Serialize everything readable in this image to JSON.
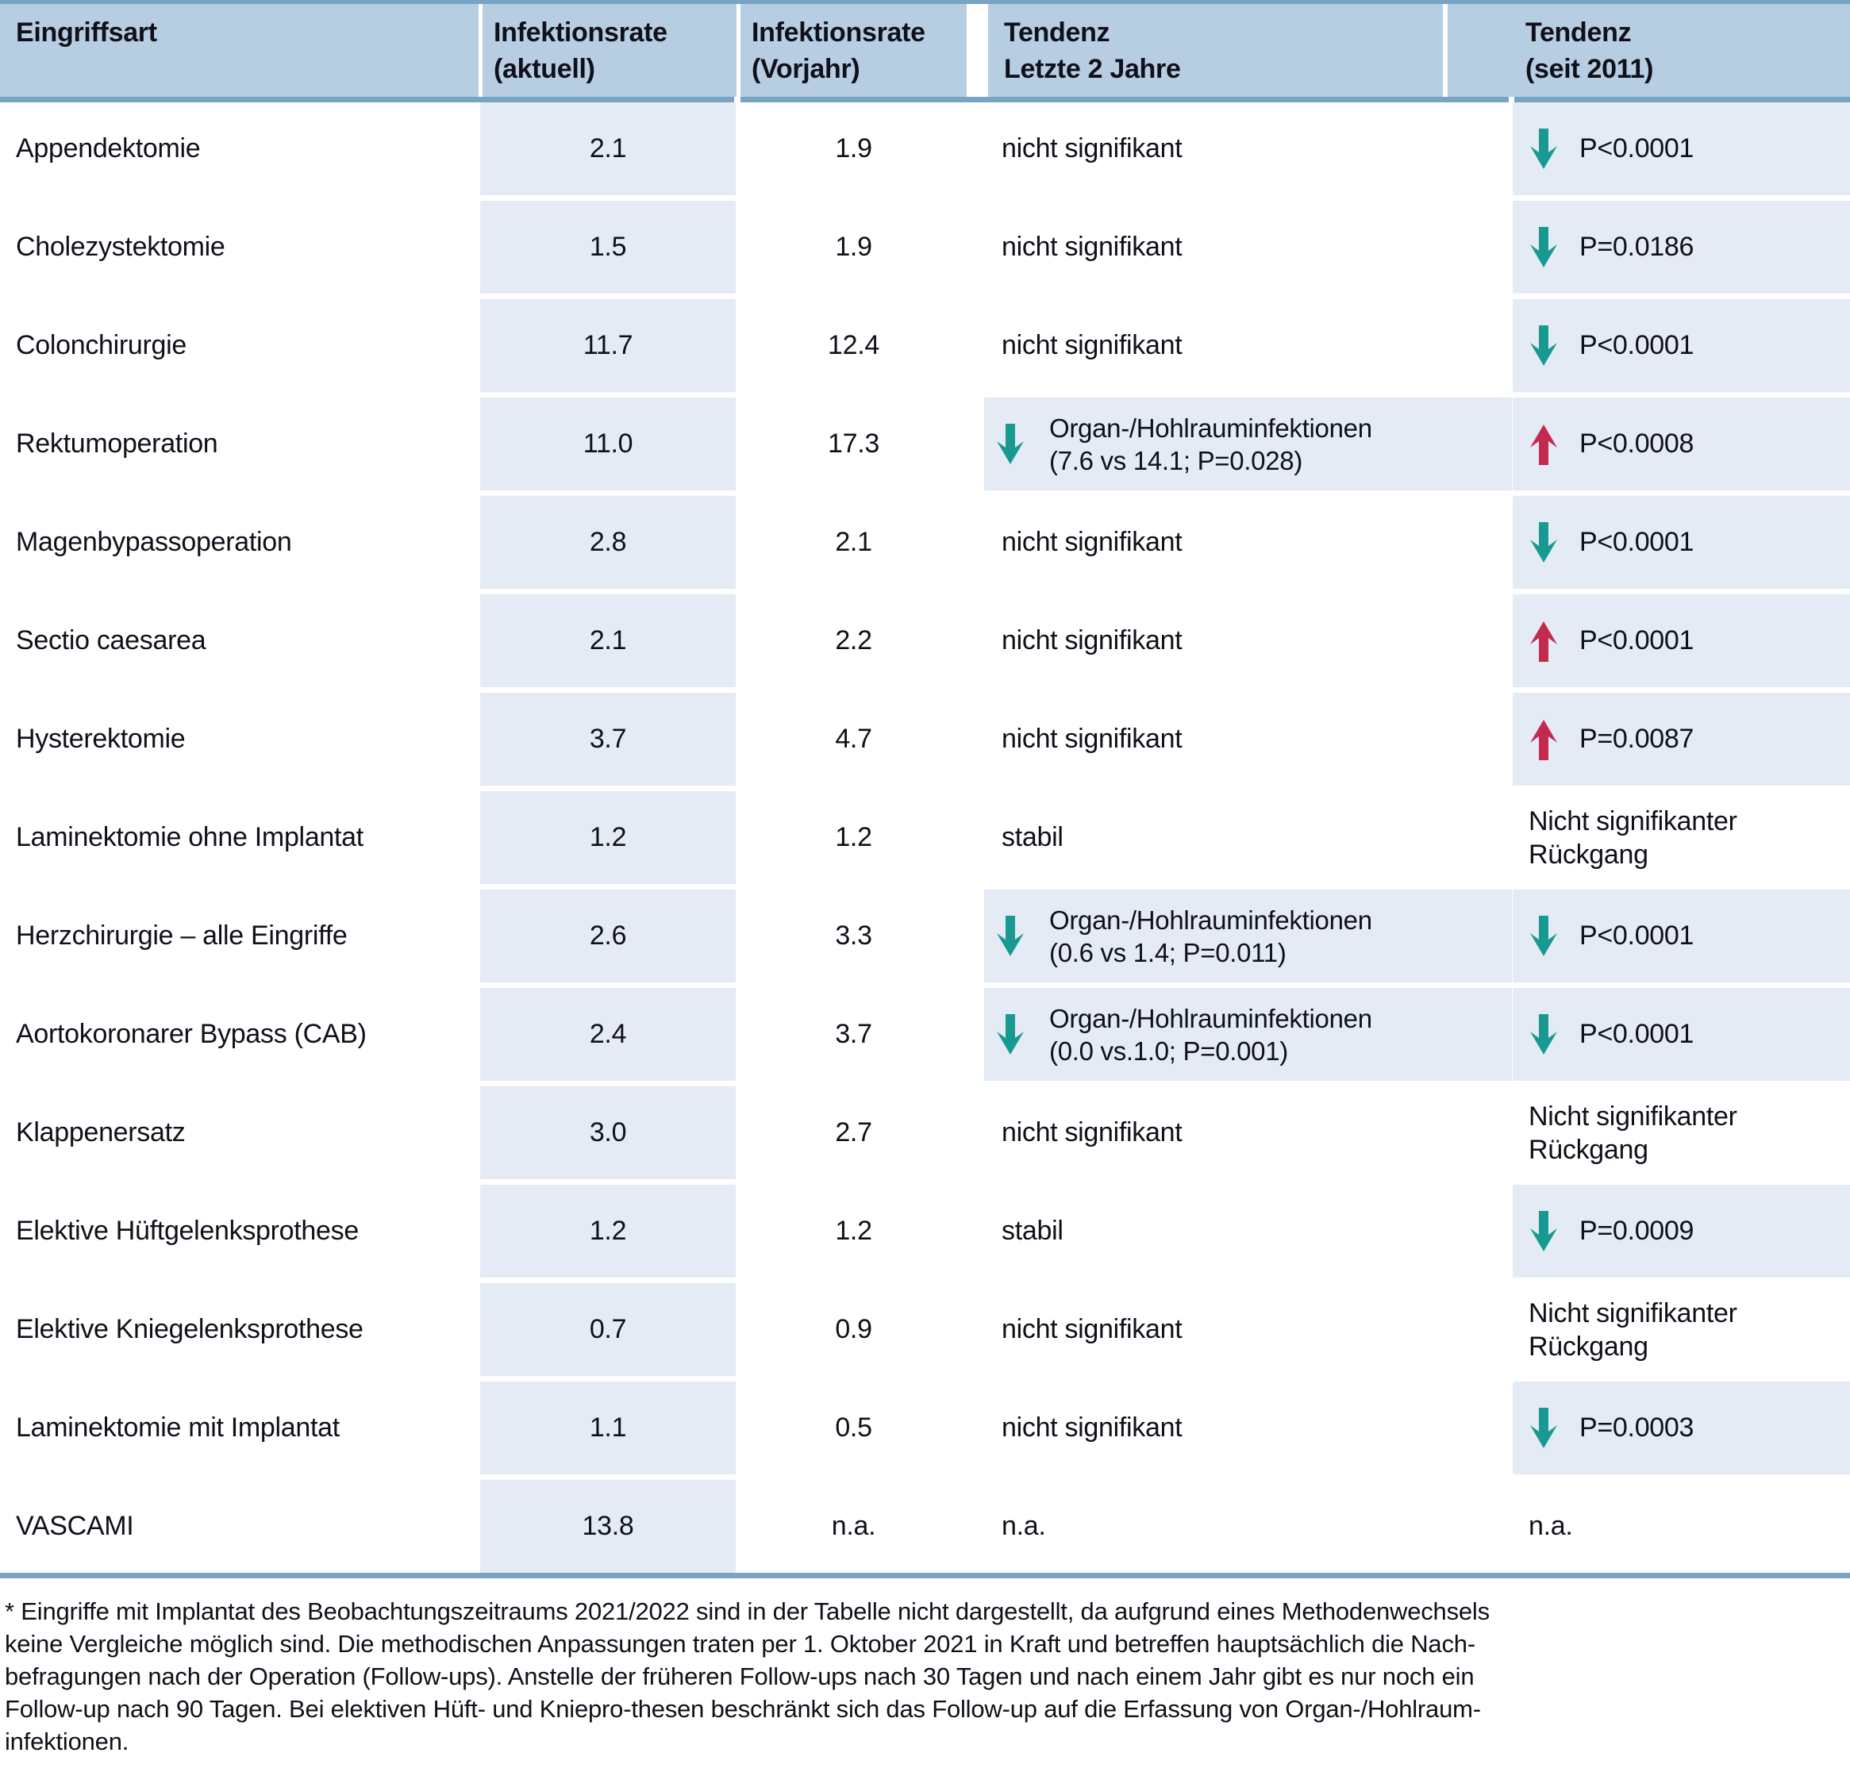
{
  "colors": {
    "header_bg": "#b7cde1",
    "divider": "#76a4c2",
    "row_highlight": "#e5ebf4",
    "arrow_down": "#189a92",
    "arrow_up": "#c42a4e",
    "text": "#10101a"
  },
  "table": {
    "columns": [
      {
        "line1": "Eingriffsart",
        "line2": ""
      },
      {
        "line1": "Infektionsrate",
        "line2": "(aktuell)"
      },
      {
        "line1": "Infektionsrate",
        "line2": "(Vorjahr)"
      },
      {
        "line1": "Tendenz",
        "line2": "Letzte 2 Jahre"
      },
      {
        "line1": "Tendenz",
        "line2": "(seit 2011)"
      }
    ],
    "rows": [
      {
        "procedure": "Appendektomie",
        "rate_current": "2.1",
        "rate_previous": "1.9",
        "trend_2y": {
          "text": "nicht signifikant"
        },
        "trend_2011": {
          "arrow": "down",
          "text": "P<0.0001",
          "highlight": true
        }
      },
      {
        "procedure": "Cholezystektomie",
        "rate_current": "1.5",
        "rate_previous": "1.9",
        "trend_2y": {
          "text": "nicht signifikant"
        },
        "trend_2011": {
          "arrow": "down",
          "text": "P=0.0186",
          "highlight": true
        }
      },
      {
        "procedure": "Colonchirurgie",
        "rate_current": "11.7",
        "rate_previous": "12.4",
        "trend_2y": {
          "text": "nicht signifikant"
        },
        "trend_2011": {
          "arrow": "down",
          "text": "P<0.0001",
          "highlight": true
        }
      },
      {
        "procedure": "Rektumoperation",
        "rate_current": "11.0",
        "rate_previous": "17.3",
        "trend_2y": {
          "box": true,
          "arrow": "down",
          "lines": [
            "Organ-/Hohlrauminfektionen",
            "(7.6 vs 14.1; P=0.028)"
          ]
        },
        "trend_2011": {
          "arrow": "up",
          "text": "P<0.0008",
          "highlight": true
        }
      },
      {
        "procedure": "Magenbypassoperation",
        "rate_current": "2.8",
        "rate_previous": "2.1",
        "trend_2y": {
          "text": "nicht signifikant"
        },
        "trend_2011": {
          "arrow": "down",
          "text": "P<0.0001",
          "highlight": true
        }
      },
      {
        "procedure": "Sectio caesarea",
        "rate_current": "2.1",
        "rate_previous": "2.2",
        "trend_2y": {
          "text": "nicht signifikant"
        },
        "trend_2011": {
          "arrow": "up",
          "text": "P<0.0001",
          "highlight": true
        }
      },
      {
        "procedure": "Hysterektomie",
        "rate_current": "3.7",
        "rate_previous": "4.7",
        "trend_2y": {
          "text": "nicht signifikant"
        },
        "trend_2011": {
          "arrow": "up",
          "text": "P=0.0087",
          "highlight": true
        }
      },
      {
        "procedure": "Laminektomie ohne Implantat",
        "rate_current": "1.2",
        "rate_previous": "1.2",
        "trend_2y": {
          "text": "stabil"
        },
        "trend_2011": {
          "lines": [
            "Nicht signifikanter",
            "Rückgang"
          ],
          "highlight": false
        }
      },
      {
        "procedure": "Herzchirurgie – alle Eingriffe",
        "rate_current": "2.6",
        "rate_previous": "3.3",
        "trend_2y": {
          "box": true,
          "arrow": "down",
          "lines": [
            "Organ-/Hohlrauminfektionen",
            "(0.6 vs 1.4; P=0.011)"
          ]
        },
        "trend_2011": {
          "arrow": "down",
          "text": "P<0.0001",
          "highlight": true
        }
      },
      {
        "procedure": "Aortokoronarer Bypass (CAB)",
        "rate_current": "2.4",
        "rate_previous": "3.7",
        "trend_2y": {
          "box": true,
          "arrow": "down",
          "lines": [
            "Organ-/Hohlrauminfektionen",
            "(0.0 vs.1.0; P=0.001)"
          ]
        },
        "trend_2011": {
          "arrow": "down",
          "text": "P<0.0001",
          "highlight": true
        }
      },
      {
        "procedure": "Klappenersatz",
        "rate_current": "3.0",
        "rate_previous": "2.7",
        "trend_2y": {
          "text": "nicht signifikant"
        },
        "trend_2011": {
          "lines": [
            "Nicht signifikanter",
            "Rückgang"
          ],
          "highlight": false
        }
      },
      {
        "procedure": "Elektive Hüftgelenksprothese",
        "rate_current": "1.2",
        "rate_previous": "1.2",
        "trend_2y": {
          "text": "stabil"
        },
        "trend_2011": {
          "arrow": "down",
          "text": "P=0.0009",
          "highlight": true
        }
      },
      {
        "procedure": "Elektive Kniegelenksprothese",
        "rate_current": "0.7",
        "rate_previous": "0.9",
        "trend_2y": {
          "text": "nicht signifikant"
        },
        "trend_2011": {
          "lines": [
            "Nicht signifikanter",
            "Rückgang"
          ],
          "highlight": false
        }
      },
      {
        "procedure": "Laminektomie mit Implantat",
        "rate_current": "1.1",
        "rate_previous": "0.5",
        "trend_2y": {
          "text": "nicht signifikant"
        },
        "trend_2011": {
          "arrow": "down",
          "text": "P=0.0003",
          "highlight": true
        }
      },
      {
        "procedure": "VASCAMI",
        "rate_current": "13.8",
        "rate_previous": "n.a.",
        "trend_2y": {
          "text": "n.a."
        },
        "trend_2011": {
          "text": "n.a.",
          "highlight": false
        }
      }
    ]
  },
  "footnote": {
    "lines": [
      "* Eingriffe mit Implantat des Beobachtungszeitraums 2021/2022 sind in der Tabelle nicht dargestellt, da aufgrund eines Methodenwechsels",
      "keine Vergleiche möglich sind. Die methodischen Anpassungen traten per 1. Oktober 2021 in Kraft und betreffen hauptsächlich die Nach-",
      "befragungen nach der Operation (Follow-ups). Anstelle der früheren Follow-ups nach 30 Tagen und nach einem Jahr gibt es nur noch ein",
      "Follow-up nach 90 Tagen. Bei elektiven Hüft- und Kniepro-thesen beschränkt sich das Follow-up auf die Erfassung von Organ-/Hohlraum-",
      "infektionen."
    ]
  }
}
